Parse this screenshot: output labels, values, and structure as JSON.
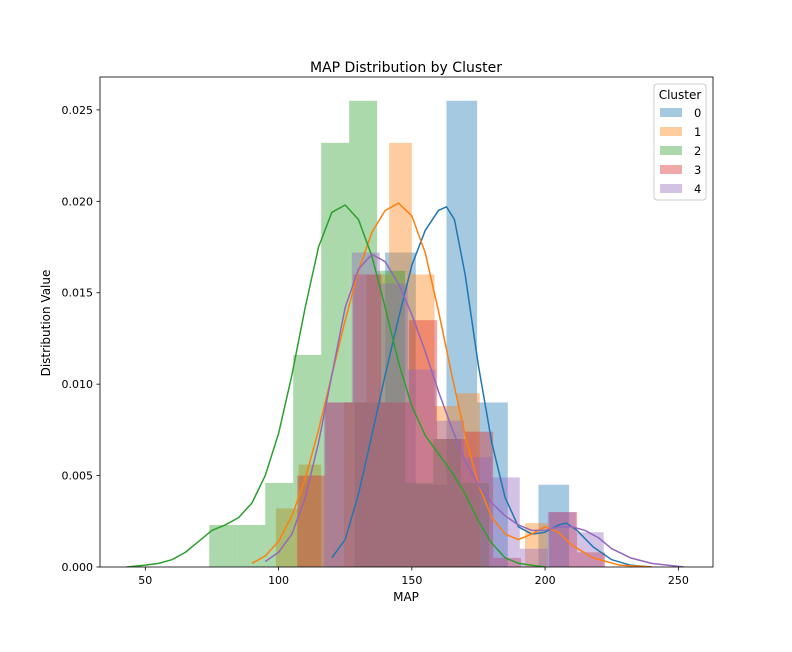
{
  "chart_data": {
    "type": "histogram+kde",
    "title": "MAP Distribution by Cluster",
    "xlabel": "MAP",
    "ylabel": "Distribution Value",
    "xlim": [
      33,
      263
    ],
    "ylim": [
      0,
      0.0268
    ],
    "xticks": [
      50,
      100,
      150,
      200,
      250
    ],
    "yticks": [
      0.0,
      0.005,
      0.01,
      0.015,
      0.02,
      0.025
    ],
    "ytick_labels": [
      "0.000",
      "0.005",
      "0.010",
      "0.015",
      "0.020",
      "0.025"
    ],
    "legend": {
      "title": "Cluster",
      "placement": "upper right"
    },
    "series": [
      {
        "name": "0",
        "color": "#1f77b4",
        "bins": [
          {
            "x0": 117,
            "x1": 128.5,
            "y": 0.0
          },
          {
            "x0": 128.5,
            "x1": 140,
            "y": 0.009
          },
          {
            "x0": 140,
            "x1": 151.5,
            "y": 0.0172
          },
          {
            "x0": 151.5,
            "x1": 163,
            "y": 0.0045
          },
          {
            "x0": 163,
            "x1": 174.5,
            "y": 0.0255
          },
          {
            "x0": 174.5,
            "x1": 186,
            "y": 0.009
          },
          {
            "x0": 186,
            "x1": 197.5,
            "y": 0.0
          },
          {
            "x0": 197.5,
            "x1": 209,
            "y": 0.0045
          }
        ],
        "kde": [
          [
            120,
            0.0005
          ],
          [
            125,
            0.0015
          ],
          [
            130,
            0.004
          ],
          [
            135,
            0.0072
          ],
          [
            140,
            0.0105
          ],
          [
            145,
            0.0136
          ],
          [
            150,
            0.0165
          ],
          [
            155,
            0.0184
          ],
          [
            160,
            0.0195
          ],
          [
            163,
            0.0197
          ],
          [
            166,
            0.019
          ],
          [
            170,
            0.016
          ],
          [
            175,
            0.011
          ],
          [
            180,
            0.0068
          ],
          [
            185,
            0.0038
          ],
          [
            190,
            0.0022
          ],
          [
            195,
            0.0018
          ],
          [
            200,
            0.0019
          ],
          [
            205,
            0.0023
          ],
          [
            208,
            0.0024
          ],
          [
            212,
            0.002
          ],
          [
            218,
            0.0011
          ],
          [
            225,
            0.0004
          ],
          [
            232,
            0.0001
          ],
          [
            240,
            0.0
          ]
        ]
      },
      {
        "name": "1",
        "color": "#ff7f0e",
        "bins": [
          {
            "x0": 99,
            "x1": 107.5,
            "y": 0.0032
          },
          {
            "x0": 107.5,
            "x1": 116,
            "y": 0.0056
          },
          {
            "x0": 116,
            "x1": 124.5,
            "y": 0.0
          },
          {
            "x0": 124.5,
            "x1": 133,
            "y": 0.009
          },
          {
            "x0": 133,
            "x1": 141.5,
            "y": 0.016
          },
          {
            "x0": 141.5,
            "x1": 150,
            "y": 0.0232
          },
          {
            "x0": 150,
            "x1": 158.5,
            "y": 0.016
          },
          {
            "x0": 158.5,
            "x1": 167,
            "y": 0.0088
          },
          {
            "x0": 167,
            "x1": 175.5,
            "y": 0.0095
          },
          {
            "x0": 175.5,
            "x1": 184,
            "y": 0.0
          },
          {
            "x0": 184,
            "x1": 192.5,
            "y": 0.0
          },
          {
            "x0": 192.5,
            "x1": 201,
            "y": 0.0024
          }
        ],
        "kde": [
          [
            90,
            0.0002
          ],
          [
            95,
            0.0006
          ],
          [
            100,
            0.0014
          ],
          [
            105,
            0.0028
          ],
          [
            110,
            0.0048
          ],
          [
            115,
            0.0075
          ],
          [
            120,
            0.0105
          ],
          [
            125,
            0.0135
          ],
          [
            130,
            0.0162
          ],
          [
            135,
            0.0183
          ],
          [
            140,
            0.0195
          ],
          [
            145,
            0.0199
          ],
          [
            150,
            0.0192
          ],
          [
            155,
            0.0172
          ],
          [
            160,
            0.014
          ],
          [
            165,
            0.0105
          ],
          [
            170,
            0.0072
          ],
          [
            175,
            0.0045
          ],
          [
            180,
            0.0027
          ],
          [
            185,
            0.0018
          ],
          [
            190,
            0.0015
          ],
          [
            195,
            0.0018
          ],
          [
            200,
            0.0022
          ],
          [
            205,
            0.0019
          ],
          [
            210,
            0.0012
          ],
          [
            218,
            0.0005
          ],
          [
            228,
            0.0001
          ],
          [
            240,
            0.0
          ]
        ]
      },
      {
        "name": "2",
        "color": "#2ca02c",
        "bins": [
          {
            "x0": 74,
            "x1": 84.5,
            "y": 0.0023
          },
          {
            "x0": 84.5,
            "x1": 95,
            "y": 0.0023
          },
          {
            "x0": 95,
            "x1": 105.5,
            "y": 0.0046
          },
          {
            "x0": 105.5,
            "x1": 116,
            "y": 0.0116
          },
          {
            "x0": 116,
            "x1": 126.5,
            "y": 0.0232
          },
          {
            "x0": 126.5,
            "x1": 137,
            "y": 0.0255
          },
          {
            "x0": 137,
            "x1": 147.5,
            "y": 0.0162
          },
          {
            "x0": 147.5,
            "x1": 158,
            "y": 0.0046
          },
          {
            "x0": 158,
            "x1": 168.5,
            "y": 0.007
          },
          {
            "x0": 168.5,
            "x1": 179,
            "y": 0.0046
          }
        ],
        "kde": [
          [
            43,
            0.0
          ],
          [
            50,
            0.0001
          ],
          [
            55,
            0.0002
          ],
          [
            60,
            0.0004
          ],
          [
            65,
            0.0008
          ],
          [
            70,
            0.0014
          ],
          [
            75,
            0.002
          ],
          [
            80,
            0.0023
          ],
          [
            85,
            0.0027
          ],
          [
            90,
            0.0035
          ],
          [
            95,
            0.005
          ],
          [
            100,
            0.0073
          ],
          [
            105,
            0.0105
          ],
          [
            110,
            0.0142
          ],
          [
            115,
            0.0175
          ],
          [
            120,
            0.0194
          ],
          [
            125,
            0.0198
          ],
          [
            130,
            0.019
          ],
          [
            135,
            0.017
          ],
          [
            140,
            0.0142
          ],
          [
            145,
            0.0112
          ],
          [
            150,
            0.0088
          ],
          [
            155,
            0.0072
          ],
          [
            160,
            0.0062
          ],
          [
            165,
            0.0052
          ],
          [
            170,
            0.004
          ],
          [
            175,
            0.0025
          ],
          [
            180,
            0.0013
          ],
          [
            185,
            0.0005
          ],
          [
            190,
            0.0002
          ],
          [
            200,
            0.0
          ]
        ]
      },
      {
        "name": "3",
        "color": "#d62728",
        "bins": [
          {
            "x0": 107,
            "x1": 117.5,
            "y": 0.005
          },
          {
            "x0": 117.5,
            "x1": 128,
            "y": 0.009
          },
          {
            "x0": 128,
            "x1": 138.5,
            "y": 0.016
          },
          {
            "x0": 138.5,
            "x1": 149,
            "y": 0.009
          },
          {
            "x0": 149,
            "x1": 159.5,
            "y": 0.0135
          },
          {
            "x0": 159.5,
            "x1": 170,
            "y": 0.007
          },
          {
            "x0": 170,
            "x1": 180.5,
            "y": 0.0074
          },
          {
            "x0": 180.5,
            "x1": 191,
            "y": 0.0005
          },
          {
            "x0": 191,
            "x1": 201.5,
            "y": 0.0
          },
          {
            "x0": 201.5,
            "x1": 212,
            "y": 0.003
          },
          {
            "x0": 212,
            "x1": 222.5,
            "y": 0.0008
          }
        ]
      },
      {
        "name": "4",
        "color": "#9467bd",
        "bins": [
          {
            "x0": 117,
            "x1": 127.5,
            "y": 0.009
          },
          {
            "x0": 127.5,
            "x1": 138,
            "y": 0.0172
          },
          {
            "x0": 138,
            "x1": 148.5,
            "y": 0.0155
          },
          {
            "x0": 148.5,
            "x1": 159,
            "y": 0.0108
          },
          {
            "x0": 159,
            "x1": 169.5,
            "y": 0.008
          },
          {
            "x0": 169.5,
            "x1": 180,
            "y": 0.006
          },
          {
            "x0": 180,
            "x1": 190.5,
            "y": 0.0049
          },
          {
            "x0": 190.5,
            "x1": 201,
            "y": 0.001
          },
          {
            "x0": 201,
            "x1": 211.5,
            "y": 0.003
          },
          {
            "x0": 211.5,
            "x1": 222,
            "y": 0.0019
          },
          {
            "x0": 222,
            "x1": 232.5,
            "y": 0.0
          }
        ],
        "kde": [
          [
            95,
            0.0003
          ],
          [
            100,
            0.0008
          ],
          [
            105,
            0.0018
          ],
          [
            110,
            0.0038
          ],
          [
            115,
            0.0068
          ],
          [
            120,
            0.0105
          ],
          [
            125,
            0.0142
          ],
          [
            130,
            0.0163
          ],
          [
            135,
            0.0171
          ],
          [
            140,
            0.0167
          ],
          [
            145,
            0.0155
          ],
          [
            150,
            0.0138
          ],
          [
            155,
            0.0118
          ],
          [
            160,
            0.0096
          ],
          [
            165,
            0.0076
          ],
          [
            170,
            0.0058
          ],
          [
            175,
            0.0045
          ],
          [
            180,
            0.0035
          ],
          [
            185,
            0.0028
          ],
          [
            190,
            0.0023
          ],
          [
            195,
            0.002
          ],
          [
            200,
            0.002
          ],
          [
            205,
            0.0022
          ],
          [
            210,
            0.0022
          ],
          [
            215,
            0.002
          ],
          [
            220,
            0.0016
          ],
          [
            225,
            0.001
          ],
          [
            232,
            0.0005
          ],
          [
            240,
            0.0002
          ],
          [
            252,
            0.0
          ]
        ]
      }
    ]
  }
}
